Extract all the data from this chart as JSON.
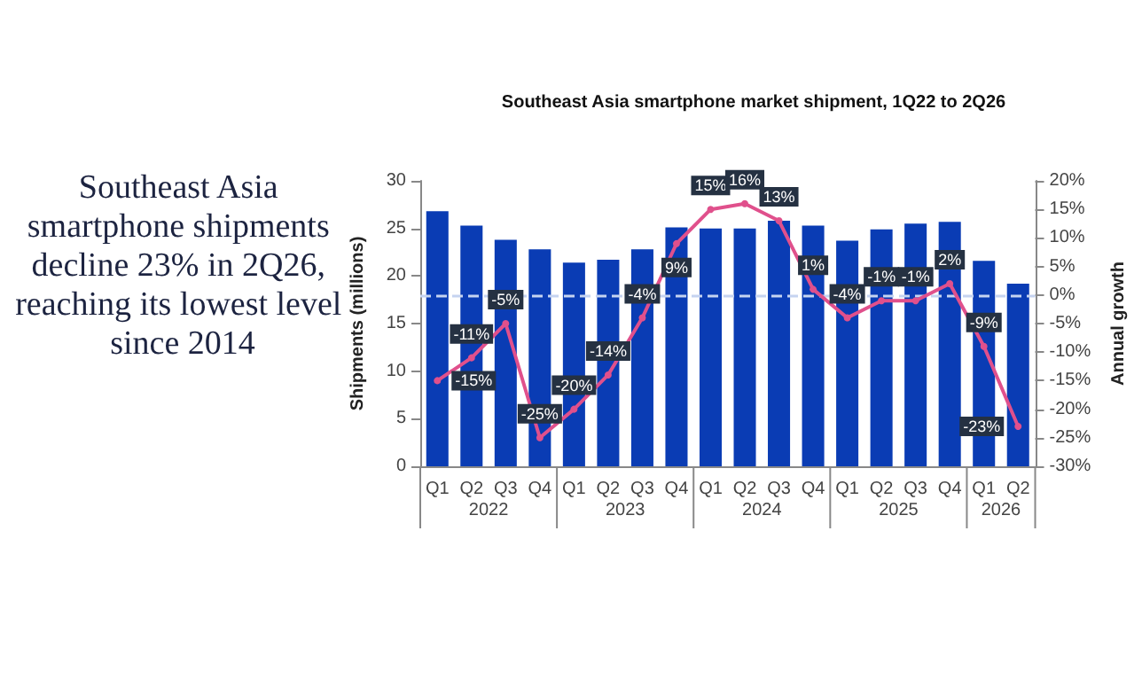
{
  "chart_data": {
    "type": "bar",
    "title": "Southeast Asia smartphone market shipment, 1Q22 to 2Q26",
    "ylabel": "Shipments (millions)",
    "y2label": "Annual growth",
    "categories": [
      "Q1",
      "Q2",
      "Q3",
      "Q4",
      "Q1",
      "Q2",
      "Q3",
      "Q4",
      "Q1",
      "Q2",
      "Q3",
      "Q4",
      "Q1",
      "Q2",
      "Q3",
      "Q4",
      "Q1",
      "Q2"
    ],
    "series": [
      {
        "color": "#0a3cb4",
        "values": [
          26.8,
          25.3,
          23.8,
          22.8,
          21.4,
          21.7,
          22.8,
          25.1,
          25.0,
          25.0,
          25.8,
          25.3,
          23.7,
          24.9,
          25.5,
          25.7,
          21.6,
          19.2
        ]
      },
      {
        "type": "line",
        "axis": "y2",
        "color": "#e0508c",
        "marker": "circle",
        "values": [
          -15,
          -11,
          -5,
          -25,
          -20,
          -14,
          -4,
          9,
          15,
          16,
          13,
          1,
          -4,
          -1,
          -1,
          2,
          -9,
          -23
        ],
        "value_labels": [
          "-15%",
          "-11%",
          "-5%",
          "-25%",
          "-20%",
          "-14%",
          "-4%",
          "9%",
          "15%",
          "16%",
          "13%",
          "1%",
          "-4%",
          "-1%",
          "-1%",
          "2%",
          "-9%",
          "-23%"
        ]
      }
    ],
    "ylim": [
      0,
      30
    ],
    "yticks": [
      0,
      5,
      10,
      15,
      20,
      25,
      30
    ],
    "y2lim": [
      -30,
      20
    ],
    "y2ticks": [
      {
        "value": -30,
        "label": "-30%"
      },
      {
        "value": -25,
        "label": "-25%"
      },
      {
        "value": -20,
        "label": "-20%"
      },
      {
        "value": -15,
        "label": "-15%"
      },
      {
        "value": -10,
        "label": "-10%"
      },
      {
        "value": -5,
        "label": "-5%"
      },
      {
        "value": 0,
        "label": "0%"
      },
      {
        "value": 5,
        "label": "5%"
      },
      {
        "value": 10,
        "label": "10%"
      },
      {
        "value": 15,
        "label": "15%"
      },
      {
        "value": 20,
        "label": "20%"
      }
    ],
    "ref_lines": [
      {
        "axis": "y2",
        "value": 0,
        "color": "#c5d3f0",
        "line_style": "dashed"
      }
    ],
    "annotations": [
      "Southeast Asia smartphone shipments decline 23% in 2Q26, reaching its lowest level since 2014",
      "2022",
      "2023",
      "2024",
      "2025",
      "2026"
    ],
    "grid": false
  }
}
